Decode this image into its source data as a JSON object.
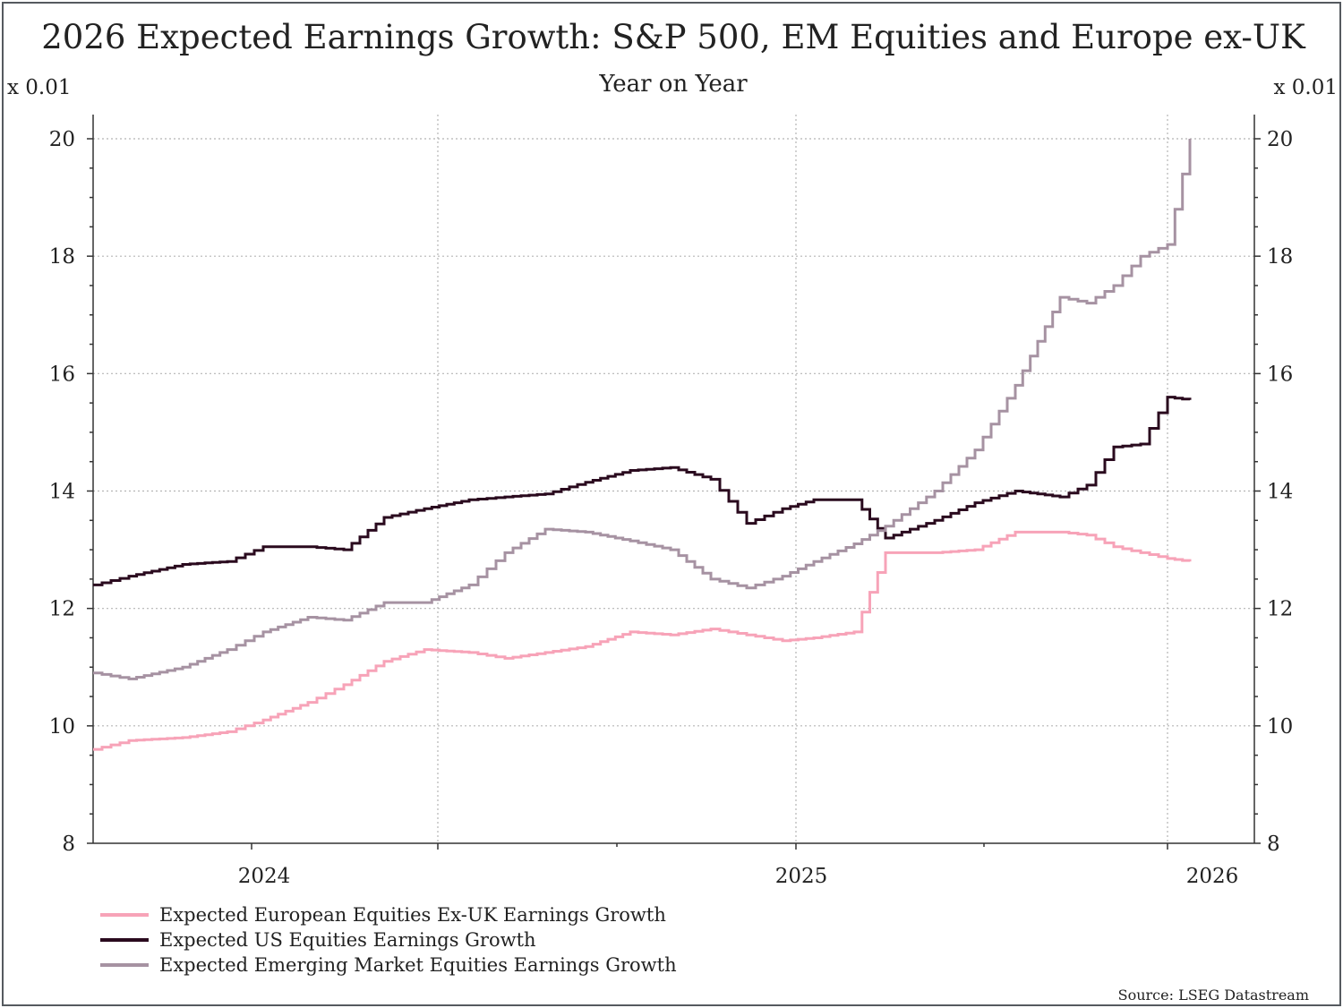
{
  "chart_data": {
    "type": "line",
    "title": "2026 Expected Earnings Growth: S&P 500, EM Equities and Europe ex-UK",
    "subtitle": "Year on Year",
    "y_unit_left": "x 0.01",
    "y_unit_right": "x 0.01",
    "ylim": [
      8,
      20
    ],
    "y_ticks": [
      8,
      10,
      12,
      14,
      16,
      18,
      20
    ],
    "x_tick_labels": [
      "2024",
      "2025",
      "2026"
    ],
    "grid": true,
    "legend_position": "bottom-left",
    "source": "Source: LSEG Datastream",
    "series": [
      {
        "name": "Expected European Equities Ex-UK Earnings Growth",
        "color": "#f7a3b8",
        "x": [
          "2023-09",
          "2023-10",
          "2023-11",
          "2023-12",
          "2024-01",
          "2024-02",
          "2024-03",
          "2024-04",
          "2024-05",
          "2024-06",
          "2024-07",
          "2024-08",
          "2024-09",
          "2024-10",
          "2024-11",
          "2024-12",
          "2025-01",
          "2025-02",
          "2025-03",
          "2025-03-20",
          "2025-04",
          "2025-05",
          "2025-06",
          "2025-07",
          "2025-08",
          "2025-09",
          "2025-10",
          "2025-11",
          "2025-12",
          "2026-01"
        ],
        "values": [
          9.6,
          9.75,
          9.8,
          9.9,
          10.1,
          10.4,
          10.7,
          11.1,
          11.3,
          11.25,
          11.15,
          11.25,
          11.35,
          11.6,
          11.55,
          11.65,
          11.55,
          11.45,
          11.5,
          11.6,
          12.95,
          12.95,
          13.0,
          13.3,
          13.3,
          13.25,
          13.05,
          12.95,
          12.85,
          12.8
        ]
      },
      {
        "name": "Expected US Equities Earnings Growth",
        "color": "#2a0a1e",
        "x": [
          "2023-09",
          "2023-10",
          "2023-11",
          "2023-12",
          "2024-01",
          "2024-02",
          "2024-03",
          "2024-04",
          "2024-05",
          "2024-06",
          "2024-07",
          "2024-08",
          "2024-09",
          "2024-10",
          "2024-11",
          "2024-12",
          "2025-01",
          "2025-02",
          "2025-03",
          "2025-03-20",
          "2025-04",
          "2025-05",
          "2025-06",
          "2025-07",
          "2025-08",
          "2025-09",
          "2025-10",
          "2025-11",
          "2025-12",
          "2026-01"
        ],
        "values": [
          12.4,
          12.55,
          12.75,
          12.8,
          13.05,
          13.05,
          13.0,
          13.55,
          13.7,
          13.85,
          13.9,
          13.95,
          14.15,
          14.35,
          14.4,
          14.2,
          13.45,
          13.7,
          13.85,
          13.85,
          13.2,
          13.5,
          13.8,
          14.0,
          13.9,
          14.1,
          14.75,
          14.8,
          15.6,
          15.55
        ]
      },
      {
        "name": "Expected Emerging Market Equities Earnings Growth",
        "color": "#a692a2",
        "x": [
          "2023-09",
          "2023-10",
          "2023-11",
          "2023-12",
          "2024-01",
          "2024-02",
          "2024-03",
          "2024-04",
          "2024-05",
          "2024-06",
          "2024-07",
          "2024-08",
          "2024-09",
          "2024-10",
          "2024-11",
          "2024-12",
          "2025-01",
          "2025-02",
          "2025-03",
          "2025-03-20",
          "2025-04",
          "2025-05",
          "2025-06",
          "2025-07",
          "2025-08",
          "2025-09",
          "2025-10",
          "2025-11",
          "2025-12",
          "2026-01"
        ],
        "values": [
          10.9,
          10.8,
          11.0,
          11.3,
          11.6,
          11.85,
          11.8,
          12.1,
          12.1,
          12.4,
          12.95,
          13.35,
          13.3,
          13.15,
          13.0,
          12.5,
          12.35,
          12.55,
          12.8,
          13.1,
          13.4,
          14.0,
          14.7,
          15.8,
          17.3,
          17.2,
          17.5,
          18.0,
          18.2,
          20.0
        ]
      }
    ]
  }
}
